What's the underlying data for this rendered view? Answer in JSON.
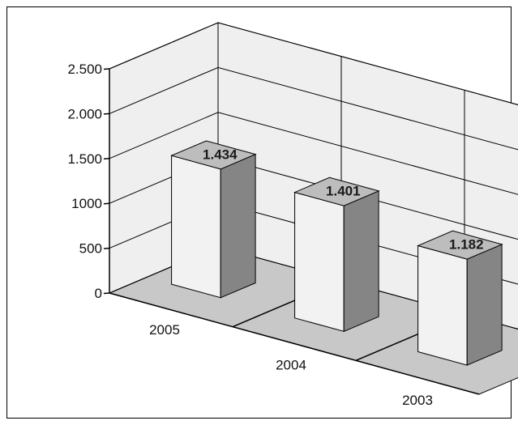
{
  "chart_data": {
    "type": "bar",
    "categories": [
      "2005",
      "2004",
      "2003"
    ],
    "values": [
      1434,
      1401,
      1182
    ],
    "data_labels": [
      "1.434",
      "1.401",
      "1.182"
    ],
    "y_ticks": [
      {
        "value": 0,
        "label": "0"
      },
      {
        "value": 500,
        "label": "500"
      },
      {
        "value": 1000,
        "label": "1000"
      },
      {
        "value": 1500,
        "label": "1.500"
      },
      {
        "value": 2000,
        "label": "2.000"
      },
      {
        "value": 2500,
        "label": "2.500"
      }
    ],
    "ylim": [
      0,
      2500
    ],
    "title": "",
    "xlabel": "",
    "ylabel": "",
    "grid": true,
    "legend": "none",
    "style": "3d-column",
    "colors": {
      "front_face": "#f2f2f2",
      "side_face": "#858585",
      "top_face": "#bdbdbd",
      "back_wall": "#efefef",
      "floor": "#c8c8c8",
      "frame": "#000000"
    }
  }
}
